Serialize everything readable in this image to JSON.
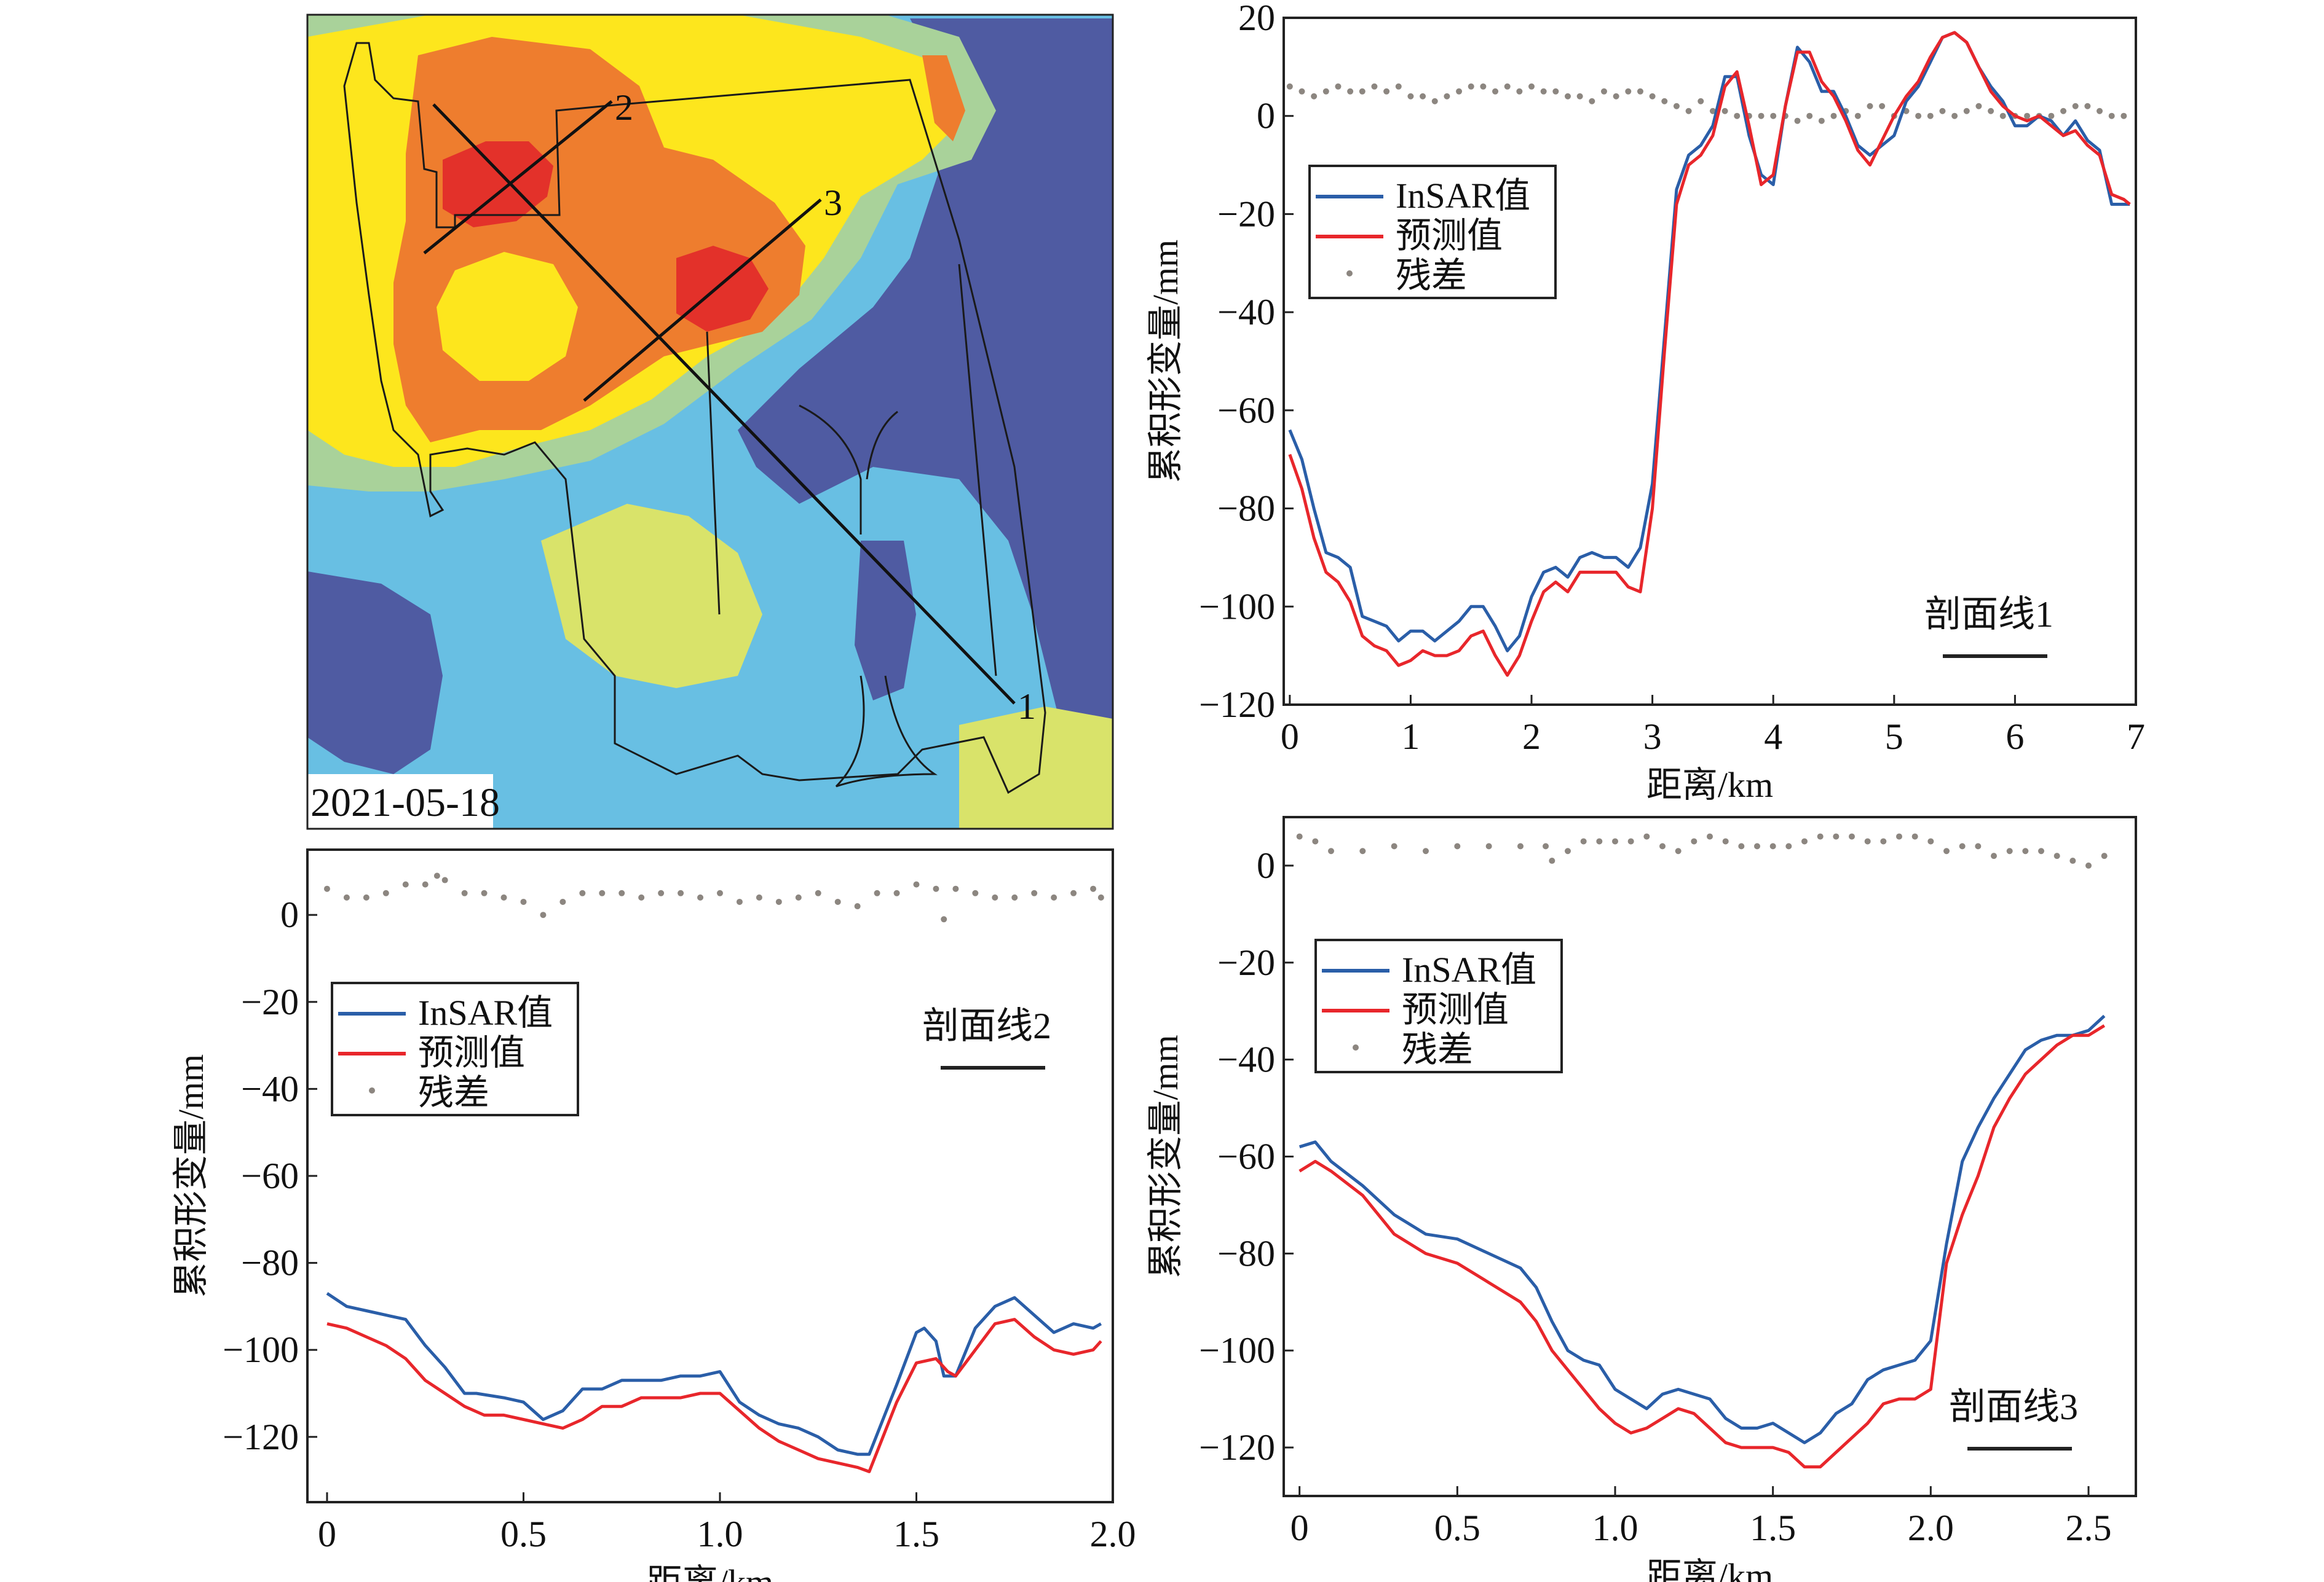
{
  "map": {
    "date_label": "2021-05-18",
    "profile_labels": [
      "1",
      "2",
      "3"
    ],
    "palette": {
      "red": "#e3312a",
      "orange": "#ee7d2e",
      "yellow": "#fde61d",
      "lightgreen": "#a9d29a",
      "paleyellow": "#d9e36a",
      "cyan": "#68bfe3",
      "navy": "#4f5ba2"
    }
  },
  "legend": {
    "insar": "InSAR值",
    "pred": "预测值",
    "resid": "残差"
  },
  "colors": {
    "insar": "#2a5ea8",
    "pred": "#e8262b",
    "resid": "#8c8680"
  },
  "chart_data": [
    {
      "type": "line",
      "title": "剖面线1",
      "xlabel": "距离/km",
      "ylabel": "累积形变量/mm",
      "xlim": [
        -0.05,
        7.0
      ],
      "ylim": [
        -120,
        20
      ],
      "xticks": [
        0,
        1,
        2,
        3,
        4,
        5,
        6,
        7
      ],
      "xtick_labels": [
        "0",
        "1",
        "2",
        "3",
        "4",
        "5",
        "6",
        "7"
      ],
      "yticks": [
        20,
        0,
        -20,
        -40,
        -60,
        -80,
        -100,
        -120
      ],
      "ytick_labels": [
        "20",
        "0",
        "−20",
        "−40",
        "−60",
        "−80",
        "−100",
        "−120"
      ],
      "legend_position": "upper-left",
      "series": [
        {
          "name": "InSAR值",
          "x": [
            0,
            0.1,
            0.2,
            0.3,
            0.4,
            0.5,
            0.6,
            0.7,
            0.8,
            0.9,
            1.0,
            1.1,
            1.2,
            1.3,
            1.4,
            1.5,
            1.6,
            1.7,
            1.8,
            1.9,
            2.0,
            2.1,
            2.2,
            2.3,
            2.4,
            2.5,
            2.6,
            2.7,
            2.8,
            2.9,
            3.0,
            3.1,
            3.2,
            3.3,
            3.4,
            3.5,
            3.6,
            3.7,
            3.8,
            3.9,
            4.0,
            4.1,
            4.2,
            4.3,
            4.4,
            4.5,
            4.6,
            4.7,
            4.8,
            4.9,
            5.0,
            5.1,
            5.2,
            5.3,
            5.4,
            5.5,
            5.6,
            5.7,
            5.8,
            5.9,
            6.0,
            6.1,
            6.2,
            6.3,
            6.4,
            6.5,
            6.6,
            6.7,
            6.8,
            6.9,
            6.95
          ],
          "y": [
            -64,
            -70,
            -80,
            -89,
            -90,
            -92,
            -102,
            -103,
            -104,
            -107,
            -105,
            -105,
            -107,
            -105,
            -103,
            -100,
            -100,
            -104,
            -109,
            -106,
            -98,
            -93,
            -92,
            -94,
            -90,
            -89,
            -90,
            -90,
            -92,
            -88,
            -75,
            -45,
            -15,
            -8,
            -6,
            -2,
            8,
            8,
            -4,
            -12,
            -14,
            2,
            14,
            11,
            5,
            5,
            0,
            -6,
            -8,
            -6,
            -4,
            3,
            6,
            11,
            16,
            17,
            15,
            10,
            6,
            3,
            -2,
            -2,
            0,
            -1,
            -4,
            -1,
            -5,
            -7,
            -18,
            -18,
            -18
          ]
        },
        {
          "name": "预测值",
          "x": [
            0,
            0.1,
            0.2,
            0.3,
            0.4,
            0.5,
            0.6,
            0.7,
            0.8,
            0.9,
            1.0,
            1.1,
            1.2,
            1.3,
            1.4,
            1.5,
            1.6,
            1.7,
            1.8,
            1.9,
            2.0,
            2.1,
            2.2,
            2.3,
            2.4,
            2.5,
            2.6,
            2.7,
            2.8,
            2.9,
            3.0,
            3.1,
            3.2,
            3.3,
            3.4,
            3.5,
            3.6,
            3.7,
            3.8,
            3.9,
            4.0,
            4.1,
            4.2,
            4.3,
            4.4,
            4.5,
            4.6,
            4.7,
            4.8,
            4.9,
            5.0,
            5.1,
            5.2,
            5.3,
            5.4,
            5.5,
            5.6,
            5.7,
            5.8,
            5.9,
            6.0,
            6.1,
            6.2,
            6.3,
            6.4,
            6.5,
            6.6,
            6.7,
            6.8,
            6.9,
            6.95
          ],
          "y": [
            -69,
            -76,
            -86,
            -93,
            -95,
            -99,
            -106,
            -108,
            -109,
            -112,
            -111,
            -109,
            -110,
            -110,
            -109,
            -106,
            -105,
            -110,
            -114,
            -110,
            -103,
            -97,
            -95,
            -97,
            -93,
            -93,
            -93,
            -93,
            -96,
            -97,
            -80,
            -48,
            -18,
            -10,
            -8,
            -4,
            6,
            9,
            -2,
            -14,
            -12,
            2,
            13,
            13,
            7,
            4,
            -1,
            -7,
            -10,
            -5,
            0,
            4,
            7,
            12,
            16,
            17,
            15,
            10,
            5,
            2,
            0,
            -1,
            0,
            -2,
            -4,
            -3,
            -6,
            -8,
            -16,
            -17,
            -18
          ]
        },
        {
          "name": "残差",
          "x": [
            0,
            0.1,
            0.2,
            0.3,
            0.4,
            0.5,
            0.6,
            0.7,
            0.8,
            0.9,
            1.0,
            1.1,
            1.2,
            1.3,
            1.4,
            1.5,
            1.6,
            1.7,
            1.8,
            1.9,
            2.0,
            2.1,
            2.2,
            2.3,
            2.4,
            2.5,
            2.6,
            2.7,
            2.8,
            2.9,
            3.0,
            3.1,
            3.2,
            3.3,
            3.4,
            3.5,
            3.6,
            3.7,
            3.8,
            3.9,
            4.0,
            4.1,
            4.2,
            4.3,
            4.4,
            4.5,
            4.6,
            4.7,
            4.8,
            4.9,
            5.0,
            5.1,
            5.2,
            5.3,
            5.4,
            5.5,
            5.6,
            5.7,
            5.8,
            5.9,
            6.0,
            6.1,
            6.2,
            6.3,
            6.4,
            6.5,
            6.6,
            6.7,
            6.8,
            6.9
          ],
          "y": [
            6,
            5,
            4,
            5,
            6,
            5,
            5,
            6,
            5,
            6,
            4,
            4,
            3,
            4,
            5,
            6,
            6,
            5,
            6,
            5,
            6,
            5,
            5,
            4,
            4,
            3,
            5,
            4,
            5,
            5,
            4,
            3,
            2,
            1,
            3,
            1,
            1,
            0,
            0,
            0,
            0,
            0,
            -1,
            0,
            -1,
            0,
            1,
            0,
            2,
            2,
            0,
            1,
            0,
            0,
            1,
            0,
            1,
            2,
            1,
            0,
            0,
            0,
            0,
            0,
            1,
            2,
            2,
            1,
            0,
            0
          ]
        }
      ]
    },
    {
      "type": "line",
      "title": "剖面线2",
      "xlabel": "距离/km",
      "ylabel": "累积形变量/mm",
      "xlim": [
        -0.05,
        2.0
      ],
      "ylim": [
        -135,
        15
      ],
      "xticks": [
        0,
        0.5,
        1.0,
        1.5,
        2.0
      ],
      "xtick_labels": [
        "0",
        "0.5",
        "1.0",
        "1.5",
        "2.0"
      ],
      "yticks": [
        0,
        -20,
        -40,
        -60,
        -80,
        -100,
        -120
      ],
      "ytick_labels": [
        "0",
        "−20",
        "−40",
        "−60",
        "−80",
        "−100",
        "−120"
      ],
      "legend_position": "upper-left",
      "series": [
        {
          "name": "InSAR值",
          "x": [
            0,
            0.05,
            0.1,
            0.15,
            0.2,
            0.25,
            0.3,
            0.35,
            0.38,
            0.45,
            0.5,
            0.55,
            0.6,
            0.65,
            0.7,
            0.75,
            0.8,
            0.85,
            0.9,
            0.95,
            1.0,
            1.05,
            1.1,
            1.15,
            1.2,
            1.25,
            1.3,
            1.35,
            1.38,
            1.45,
            1.5,
            1.52,
            1.55,
            1.57,
            1.6,
            1.65,
            1.7,
            1.75,
            1.8,
            1.85,
            1.9,
            1.95,
            1.97
          ],
          "y": [
            -87,
            -90,
            -91,
            -92,
            -93,
            -99,
            -104,
            -110,
            -110,
            -111,
            -112,
            -116,
            -114,
            -109,
            -109,
            -107,
            -107,
            -107,
            -106,
            -106,
            -105,
            -112,
            -115,
            -117,
            -118,
            -120,
            -123,
            -124,
            -124,
            -108,
            -96,
            -95,
            -98,
            -106,
            -106,
            -95,
            -90,
            -88,
            -92,
            -96,
            -94,
            -95,
            -94
          ]
        },
        {
          "name": "预测值",
          "x": [
            0,
            0.05,
            0.1,
            0.15,
            0.2,
            0.25,
            0.3,
            0.35,
            0.4,
            0.45,
            0.5,
            0.55,
            0.6,
            0.65,
            0.7,
            0.75,
            0.8,
            0.85,
            0.9,
            0.95,
            1.0,
            1.05,
            1.1,
            1.15,
            1.2,
            1.25,
            1.3,
            1.35,
            1.38,
            1.45,
            1.5,
            1.55,
            1.58,
            1.6,
            1.65,
            1.7,
            1.75,
            1.8,
            1.85,
            1.9,
            1.95,
            1.97
          ],
          "y": [
            -94,
            -95,
            -97,
            -99,
            -102,
            -107,
            -110,
            -113,
            -115,
            -115,
            -116,
            -117,
            -118,
            -116,
            -113,
            -113,
            -111,
            -111,
            -111,
            -110,
            -110,
            -114,
            -118,
            -121,
            -123,
            -125,
            -126,
            -127,
            -128,
            -112,
            -103,
            -102,
            -105,
            -106,
            -100,
            -94,
            -93,
            -97,
            -100,
            -101,
            -100,
            -98
          ]
        },
        {
          "name": "残差",
          "x": [
            0,
            0.05,
            0.1,
            0.15,
            0.2,
            0.25,
            0.28,
            0.3,
            0.35,
            0.4,
            0.45,
            0.5,
            0.55,
            0.6,
            0.65,
            0.7,
            0.75,
            0.8,
            0.85,
            0.9,
            0.95,
            1.0,
            1.05,
            1.1,
            1.15,
            1.2,
            1.25,
            1.3,
            1.35,
            1.4,
            1.45,
            1.5,
            1.55,
            1.57,
            1.6,
            1.65,
            1.7,
            1.75,
            1.8,
            1.85,
            1.9,
            1.95,
            1.97
          ],
          "y": [
            6,
            4,
            4,
            5,
            7,
            7,
            9,
            8,
            5,
            5,
            4,
            3,
            0,
            3,
            5,
            5,
            5,
            4,
            5,
            5,
            4,
            5,
            3,
            4,
            3,
            4,
            5,
            3,
            2,
            5,
            5,
            7,
            6,
            -1,
            6,
            5,
            4,
            4,
            5,
            4,
            5,
            6,
            4
          ]
        }
      ]
    },
    {
      "type": "line",
      "title": "剖面线3",
      "xlabel": "距离/km",
      "ylabel": "累积形变量/mm",
      "xlim": [
        -0.05,
        2.65
      ],
      "ylim": [
        -130,
        10
      ],
      "xticks": [
        0,
        0.5,
        1.0,
        1.5,
        2.0,
        2.5
      ],
      "xtick_labels": [
        "0",
        "0.5",
        "1.0",
        "1.5",
        "2.0",
        "2.5"
      ],
      "yticks": [
        0,
        -20,
        -40,
        -60,
        -80,
        -100,
        -120
      ],
      "ytick_labels": [
        "0",
        "−20",
        "−40",
        "−60",
        "−80",
        "−100",
        "−120"
      ],
      "legend_position": "upper-left",
      "series": [
        {
          "name": "InSAR值",
          "x": [
            0,
            0.05,
            0.1,
            0.2,
            0.3,
            0.4,
            0.5,
            0.6,
            0.7,
            0.75,
            0.8,
            0.85,
            0.9,
            0.95,
            1.0,
            1.05,
            1.1,
            1.15,
            1.2,
            1.3,
            1.35,
            1.4,
            1.45,
            1.5,
            1.55,
            1.6,
            1.65,
            1.7,
            1.75,
            1.8,
            1.85,
            1.9,
            1.95,
            2.0,
            2.05,
            2.1,
            2.15,
            2.2,
            2.25,
            2.3,
            2.35,
            2.4,
            2.45,
            2.5,
            2.55
          ],
          "y": [
            -58,
            -57,
            -61,
            -66,
            -72,
            -76,
            -77,
            -80,
            -83,
            -87,
            -94,
            -100,
            -102,
            -103,
            -108,
            -110,
            -112,
            -109,
            -108,
            -110,
            -114,
            -116,
            -116,
            -115,
            -117,
            -119,
            -117,
            -113,
            -111,
            -106,
            -104,
            -103,
            -102,
            -98,
            -78,
            -61,
            -54,
            -48,
            -43,
            -38,
            -36,
            -35,
            -35,
            -34,
            -31
          ]
        },
        {
          "name": "预测值",
          "x": [
            0,
            0.05,
            0.1,
            0.2,
            0.3,
            0.4,
            0.5,
            0.6,
            0.7,
            0.75,
            0.8,
            0.85,
            0.9,
            0.95,
            1.0,
            1.05,
            1.1,
            1.15,
            1.2,
            1.25,
            1.3,
            1.35,
            1.4,
            1.45,
            1.5,
            1.55,
            1.6,
            1.65,
            1.7,
            1.75,
            1.8,
            1.85,
            1.9,
            1.95,
            2.0,
            2.05,
            2.1,
            2.15,
            2.2,
            2.25,
            2.3,
            2.35,
            2.4,
            2.45,
            2.5,
            2.55
          ],
          "y": [
            -63,
            -61,
            -63,
            -68,
            -76,
            -80,
            -82,
            -86,
            -90,
            -94,
            -100,
            -104,
            -108,
            -112,
            -115,
            -117,
            -116,
            -114,
            -112,
            -113,
            -116,
            -119,
            -120,
            -120,
            -120,
            -121,
            -124,
            -124,
            -121,
            -118,
            -115,
            -111,
            -110,
            -110,
            -108,
            -82,
            -72,
            -64,
            -54,
            -48,
            -43,
            -40,
            -37,
            -35,
            -35,
            -33
          ]
        },
        {
          "name": "残差",
          "x": [
            0,
            0.05,
            0.1,
            0.2,
            0.3,
            0.4,
            0.5,
            0.6,
            0.7,
            0.78,
            0.8,
            0.85,
            0.9,
            0.95,
            1.0,
            1.05,
            1.1,
            1.15,
            1.2,
            1.25,
            1.3,
            1.35,
            1.4,
            1.45,
            1.5,
            1.55,
            1.6,
            1.65,
            1.7,
            1.75,
            1.8,
            1.85,
            1.9,
            1.95,
            2.0,
            2.05,
            2.1,
            2.15,
            2.2,
            2.25,
            2.3,
            2.35,
            2.4,
            2.45,
            2.5,
            2.55
          ],
          "y": [
            6,
            5,
            3,
            3,
            4,
            3,
            4,
            4,
            4,
            4,
            1,
            3,
            5,
            5,
            5,
            5,
            6,
            4,
            3,
            5,
            6,
            5,
            4,
            4,
            4,
            4,
            5,
            6,
            6,
            6,
            5,
            5,
            6,
            6,
            5,
            3,
            4,
            4,
            2,
            3,
            3,
            3,
            2,
            1,
            0,
            2
          ]
        }
      ]
    }
  ]
}
